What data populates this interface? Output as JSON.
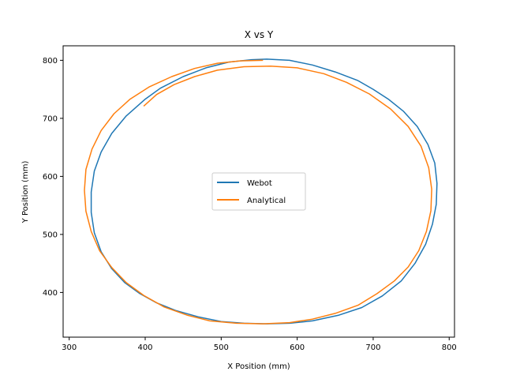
{
  "chart_data": {
    "type": "line",
    "title": "X vs Y",
    "xlabel": "X Position (mm)",
    "ylabel": "Y Position (mm)",
    "xlim": [
      292,
      807
    ],
    "ylim": [
      323,
      825
    ],
    "xticks": [
      300,
      400,
      500,
      600,
      700,
      800
    ],
    "yticks": [
      400,
      500,
      600,
      700,
      800
    ],
    "grid": false,
    "legend_position": "center",
    "series": [
      {
        "name": "Webot",
        "color": "#1f77b4",
        "points": [
          [
            400,
            733
          ],
          [
            420,
            752
          ],
          [
            450,
            772
          ],
          [
            480,
            787
          ],
          [
            510,
            797
          ],
          [
            540,
            801
          ],
          [
            560,
            802
          ],
          [
            590,
            800
          ],
          [
            620,
            792
          ],
          [
            650,
            780
          ],
          [
            680,
            765
          ],
          [
            700,
            750
          ],
          [
            720,
            733
          ],
          [
            740,
            712
          ],
          [
            758,
            686
          ],
          [
            772,
            655
          ],
          [
            781,
            623
          ],
          [
            784,
            588
          ],
          [
            783,
            552
          ],
          [
            778,
            518
          ],
          [
            769,
            483
          ],
          [
            755,
            450
          ],
          [
            737,
            420
          ],
          [
            712,
            394
          ],
          [
            685,
            374
          ],
          [
            655,
            361
          ],
          [
            620,
            351
          ],
          [
            590,
            347
          ],
          [
            560,
            346
          ],
          [
            530,
            347
          ],
          [
            500,
            350
          ],
          [
            470,
            358
          ],
          [
            440,
            369
          ],
          [
            415,
            382
          ],
          [
            393,
            398
          ],
          [
            373,
            417
          ],
          [
            356,
            441
          ],
          [
            342,
            470
          ],
          [
            333,
            503
          ],
          [
            329,
            538
          ],
          [
            329,
            573
          ],
          [
            333,
            609
          ],
          [
            342,
            642
          ],
          [
            356,
            674
          ],
          [
            375,
            704
          ],
          [
            400,
            733
          ]
        ]
      },
      {
        "name": "Analytical",
        "color": "#ff7f0e",
        "points": [
          [
            555,
            800
          ],
          [
            525,
            799
          ],
          [
            495,
            795
          ],
          [
            465,
            786
          ],
          [
            435,
            772
          ],
          [
            405,
            754
          ],
          [
            380,
            733
          ],
          [
            359,
            708
          ],
          [
            342,
            679
          ],
          [
            330,
            647
          ],
          [
            322,
            612
          ],
          [
            320,
            576
          ],
          [
            322,
            540
          ],
          [
            329,
            505
          ],
          [
            340,
            472
          ],
          [
            356,
            443
          ],
          [
            375,
            417
          ],
          [
            398,
            395
          ],
          [
            425,
            375
          ],
          [
            455,
            361
          ],
          [
            485,
            351
          ],
          [
            520,
            347
          ],
          [
            555,
            346
          ],
          [
            590,
            348
          ],
          [
            620,
            354
          ],
          [
            650,
            364
          ],
          [
            680,
            378
          ],
          [
            705,
            398
          ],
          [
            728,
            420
          ],
          [
            746,
            444
          ],
          [
            760,
            472
          ],
          [
            770,
            505
          ],
          [
            776,
            541
          ],
          [
            777,
            578
          ],
          [
            773,
            615
          ],
          [
            763,
            652
          ],
          [
            746,
            686
          ],
          [
            723,
            716
          ],
          [
            695,
            742
          ],
          [
            665,
            762
          ],
          [
            635,
            777
          ],
          [
            600,
            787
          ],
          [
            565,
            790
          ],
          [
            530,
            789
          ],
          [
            495,
            783
          ],
          [
            465,
            772
          ],
          [
            438,
            758
          ],
          [
            415,
            741
          ],
          [
            398,
            721
          ]
        ]
      }
    ]
  }
}
